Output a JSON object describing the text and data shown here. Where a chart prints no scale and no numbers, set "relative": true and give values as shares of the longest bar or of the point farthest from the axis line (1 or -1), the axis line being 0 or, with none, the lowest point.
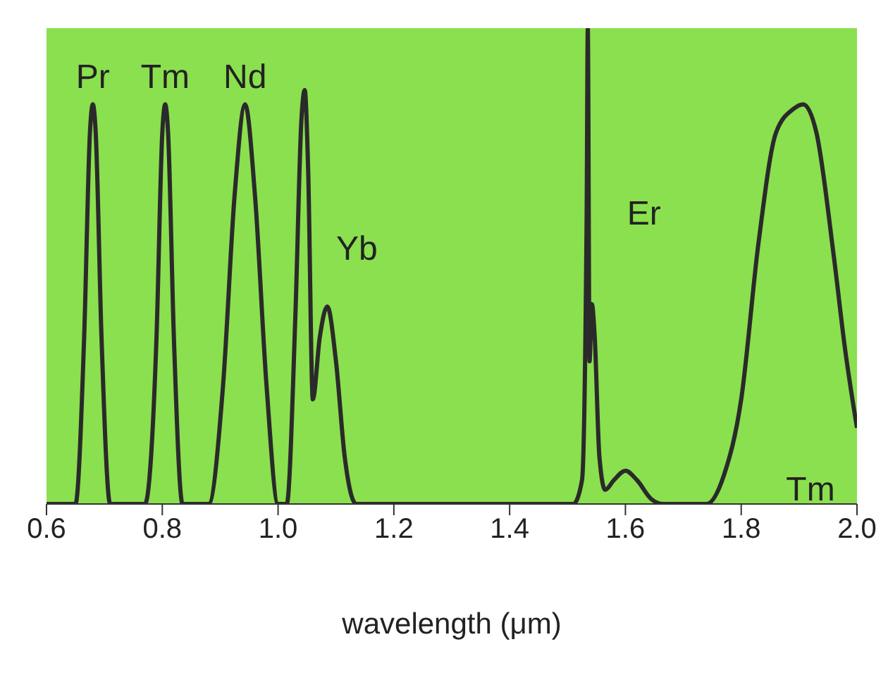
{
  "chart_data": {
    "type": "line",
    "relative": true,
    "xlabel": "wavelength (μm)",
    "xlim": [
      0.6,
      2.0
    ],
    "xticks": [
      0.6,
      0.8,
      {
        "value": 1.0,
        "label": "1.0"
      },
      1.2,
      1.4,
      1.6,
      1.8,
      {
        "value": 2.0,
        "label": "2.0"
      }
    ],
    "grid": false,
    "marker": "none",
    "line_style": "solid",
    "annotations": [
      {
        "text": "Pr",
        "x": 0.68,
        "y": 0.84
      },
      {
        "text": "Tm",
        "x": 0.805,
        "y": 0.84
      },
      {
        "text": "Nd",
        "x": 0.943,
        "y": 0.84
      },
      {
        "text": "Yb",
        "x": 1.085,
        "y": 0.415
      },
      {
        "text": "Er",
        "x": 1.542,
        "y": 0.42
      },
      {
        "text": "Tm",
        "x": 2.0,
        "y": 0.16
      }
    ],
    "series": [
      {
        "color": "#2a2a2a",
        "x": [
          0.6,
          0.65,
          0.665,
          0.675,
          0.68,
          0.685,
          0.695,
          0.71,
          0.77,
          0.79,
          0.8,
          0.805,
          0.81,
          0.82,
          0.835,
          0.88,
          0.905,
          0.925,
          0.943,
          0.96,
          0.98,
          1.0,
          1.015,
          1.03,
          1.04,
          1.046,
          1.052,
          1.06,
          1.072,
          1.085,
          1.1,
          1.115,
          1.135,
          1.51,
          1.525,
          1.533,
          1.535,
          1.538,
          1.542,
          1.547,
          1.555,
          1.565,
          1.58,
          1.6,
          1.62,
          1.645,
          1.665,
          1.74,
          1.77,
          1.8,
          1.83,
          1.86,
          1.89,
          1.907,
          1.93,
          1.96,
          1.98,
          2.0
        ],
        "values": [
          0,
          0,
          0.35,
          0.78,
          0.84,
          0.78,
          0.35,
          0,
          0,
          0.35,
          0.78,
          0.84,
          0.78,
          0.35,
          0,
          0,
          0.25,
          0.65,
          0.84,
          0.65,
          0.25,
          0,
          0,
          0.4,
          0.8,
          0.87,
          0.7,
          0.22,
          0.35,
          0.415,
          0.3,
          0.1,
          0,
          0,
          0.05,
          0.6,
          1,
          0.3,
          0.42,
          0.35,
          0.1,
          0.03,
          0.05,
          0.07,
          0.05,
          0.01,
          0,
          0,
          0.06,
          0.22,
          0.55,
          0.78,
          0.83,
          0.84,
          0.78,
          0.52,
          0.32,
          0.16
        ]
      }
    ]
  }
}
